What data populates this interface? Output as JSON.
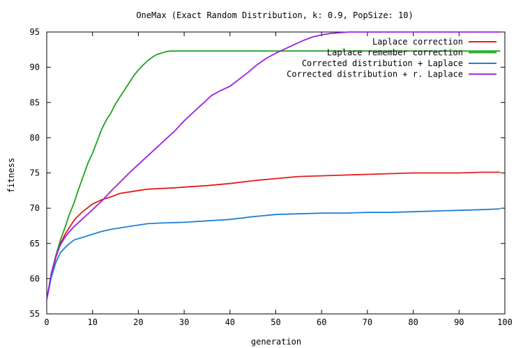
{
  "chart_data": {
    "type": "line",
    "title": "OneMax (Exact Random Distribution, k: 0.9, PopSize: 10)",
    "xlabel": "generation",
    "ylabel": "fitness",
    "xlim": [
      0,
      100
    ],
    "ylim": [
      55,
      95
    ],
    "x_ticks": [
      0,
      10,
      20,
      30,
      40,
      50,
      60,
      70,
      80,
      90,
      100
    ],
    "y_ticks": [
      55,
      60,
      65,
      70,
      75,
      80,
      85,
      90,
      95
    ],
    "grid": false,
    "legend_position": "top-right",
    "series": [
      {
        "name": "Laplace correction",
        "color": "#e41a1c",
        "x": [
          0,
          1,
          2,
          3,
          4,
          5,
          6,
          7,
          8,
          10,
          12,
          14,
          16,
          18,
          20,
          22,
          25,
          28,
          30,
          35,
          40,
          45,
          50,
          55,
          60,
          65,
          70,
          75,
          80,
          85,
          90,
          95,
          99
        ],
        "y": [
          57,
          60.5,
          63,
          65,
          66.3,
          67.3,
          68.3,
          69,
          69.6,
          70.6,
          71.2,
          71.6,
          72.1,
          72.3,
          72.5,
          72.7,
          72.8,
          72.9,
          73,
          73.2,
          73.5,
          73.9,
          74.2,
          74.5,
          74.6,
          74.7,
          74.8,
          74.9,
          75,
          75,
          75,
          75.1,
          75.1
        ]
      },
      {
        "name": "Laplace remember correction",
        "color": "#1aa31a",
        "x": [
          0,
          1,
          2,
          3,
          4,
          5,
          6,
          7,
          8,
          9,
          10,
          11,
          12,
          13,
          14,
          15,
          16,
          17,
          18,
          19,
          20,
          21,
          22,
          23,
          24,
          25,
          26,
          27,
          30,
          40,
          50,
          60,
          70,
          80,
          90,
          99
        ],
        "y": [
          57,
          60.5,
          63.3,
          65.5,
          67.3,
          69.2,
          70.8,
          72.8,
          74.6,
          76.4,
          77.8,
          79.5,
          81.2,
          82.5,
          83.5,
          84.8,
          85.8,
          86.8,
          87.8,
          88.8,
          89.6,
          90.3,
          90.9,
          91.4,
          91.8,
          92.0,
          92.2,
          92.3,
          92.3,
          92.3,
          92.3,
          92.3,
          92.3,
          92.3,
          92.3,
          92.3
        ]
      },
      {
        "name": "Corrected distribution + Laplace",
        "color": "#1e7fd6",
        "x": [
          0,
          1,
          2,
          3,
          4,
          5,
          6,
          7,
          8,
          10,
          12,
          14,
          16,
          18,
          20,
          22,
          25,
          30,
          35,
          40,
          45,
          50,
          55,
          60,
          65,
          70,
          75,
          80,
          85,
          90,
          95,
          99
        ],
        "y": [
          57,
          60.2,
          62.3,
          63.7,
          64.4,
          65,
          65.5,
          65.7,
          65.9,
          66.3,
          66.7,
          67,
          67.2,
          67.4,
          67.6,
          67.8,
          67.9,
          68,
          68.2,
          68.4,
          68.8,
          69.1,
          69.2,
          69.3,
          69.3,
          69.4,
          69.4,
          69.5,
          69.6,
          69.7,
          69.8,
          69.9
        ]
      },
      {
        "name": "Corrected distribution + r. Laplace",
        "color": "#9b1fe0",
        "x": [
          0,
          1,
          2,
          3,
          4,
          5,
          6,
          7,
          8,
          10,
          12,
          14,
          16,
          18,
          20,
          22,
          24,
          26,
          28,
          30,
          32,
          34,
          36,
          38,
          40,
          42,
          44,
          46,
          48,
          50,
          52,
          54,
          56,
          58,
          60,
          62,
          64,
          66,
          70,
          80,
          90,
          99
        ],
        "y": [
          57,
          60.8,
          63.2,
          64.8,
          65.9,
          66.7,
          67.4,
          68,
          68.6,
          69.8,
          71,
          72.4,
          73.7,
          75,
          76.2,
          77.4,
          78.6,
          79.8,
          81,
          82.4,
          83.6,
          84.8,
          86,
          86.7,
          87.3,
          88.3,
          89.3,
          90.4,
          91.3,
          92,
          92.6,
          93.2,
          93.8,
          94.3,
          94.6,
          94.8,
          94.9,
          95,
          95,
          95,
          95,
          95
        ]
      }
    ]
  }
}
